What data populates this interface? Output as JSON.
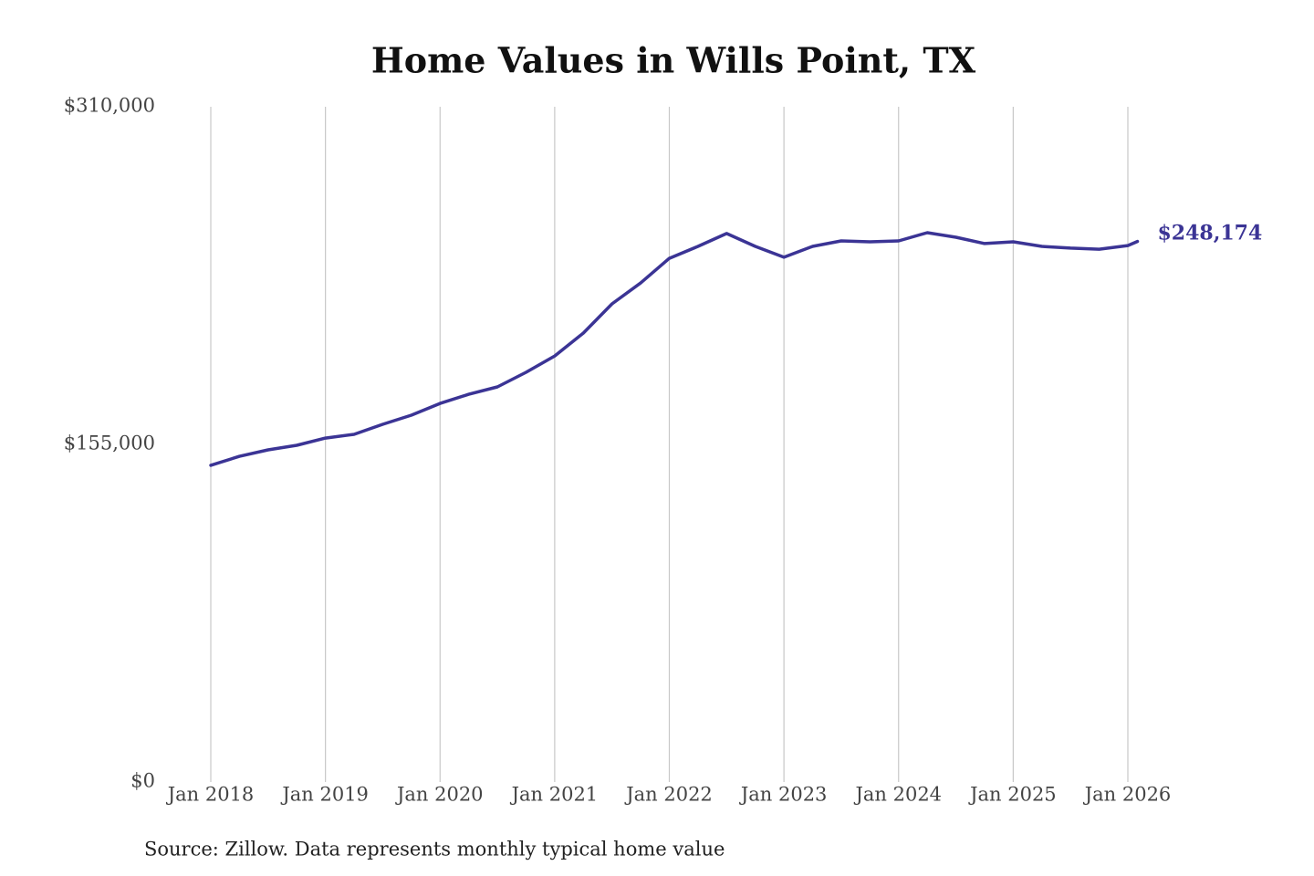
{
  "chart_data": {
    "type": "line",
    "title": "Home Values in Wills Point, TX",
    "note": "Source: Zillow. Data represents monthly typical home value",
    "x": [
      "2018-01",
      "2018-04",
      "2018-07",
      "2018-10",
      "2019-01",
      "2019-04",
      "2019-07",
      "2019-10",
      "2020-01",
      "2020-04",
      "2020-07",
      "2020-10",
      "2021-01",
      "2021-04",
      "2021-07",
      "2021-10",
      "2022-01",
      "2022-04",
      "2022-07",
      "2022-10",
      "2023-01",
      "2023-04",
      "2023-07",
      "2023-10",
      "2024-01",
      "2024-04",
      "2024-07",
      "2024-10",
      "2025-01",
      "2025-04",
      "2025-07",
      "2025-10",
      "2026-01",
      "2026-02"
    ],
    "series": [
      {
        "name": "Home value",
        "color": "#3b3495",
        "values": [
          145400,
          149500,
          152500,
          154600,
          157900,
          159600,
          164200,
          168400,
          173800,
          178000,
          181400,
          188100,
          195600,
          206100,
          219500,
          229100,
          240400,
          245900,
          251800,
          245900,
          240900,
          245900,
          248400,
          248000,
          248400,
          252200,
          250100,
          247200,
          248000,
          245900,
          245100,
          244600,
          246300,
          248174
        ],
        "value_labels": [
          null,
          null,
          null,
          null,
          null,
          null,
          null,
          null,
          null,
          null,
          null,
          null,
          null,
          null,
          null,
          null,
          null,
          null,
          null,
          null,
          null,
          null,
          null,
          null,
          null,
          null,
          null,
          null,
          null,
          null,
          null,
          null,
          null,
          "$248,174"
        ]
      }
    ],
    "ylim": [
      0,
      310000
    ],
    "yticks": [
      {
        "value": 0,
        "label": "$0"
      },
      {
        "value": 155000,
        "label": "$155,000"
      },
      {
        "value": 310000,
        "label": "$310,000"
      }
    ],
    "xticks": [
      {
        "value": "2018-01",
        "label": "Jan 2018"
      },
      {
        "value": "2019-01",
        "label": "Jan 2019"
      },
      {
        "value": "2020-01",
        "label": "Jan 2020"
      },
      {
        "value": "2021-01",
        "label": "Jan 2021"
      },
      {
        "value": "2022-01",
        "label": "Jan 2022"
      },
      {
        "value": "2023-01",
        "label": "Jan 2023"
      },
      {
        "value": "2024-01",
        "label": "Jan 2024"
      },
      {
        "value": "2025-01",
        "label": "Jan 2025"
      },
      {
        "value": "2026-01",
        "label": "Jan 2026"
      }
    ],
    "grid": true
  }
}
